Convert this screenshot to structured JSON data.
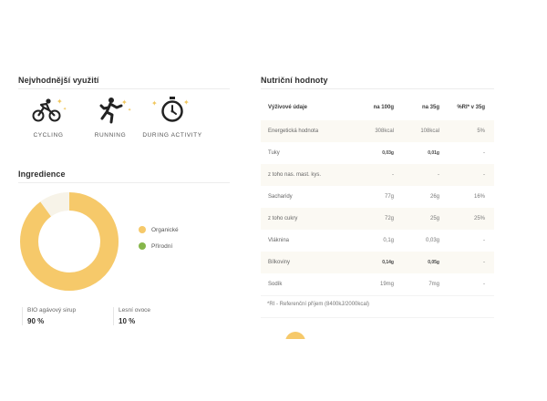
{
  "usage": {
    "title": "Nejvhodnější využití",
    "items": [
      {
        "icon": "cycling-icon",
        "label": "CYCLING"
      },
      {
        "icon": "running-icon",
        "label": "RUNNING"
      },
      {
        "icon": "stopwatch-icon",
        "label": "DURING ACTIVITY"
      }
    ]
  },
  "ingredients": {
    "title": "Ingredience",
    "legend": [
      {
        "label": "Organické",
        "color": "#f6c96a"
      },
      {
        "label": "Přírodní",
        "color": "#86b64a"
      }
    ],
    "items": [
      {
        "name": "BIO agávový sirup",
        "value": "90 %",
        "percent": 90
      },
      {
        "name": "Lesní ovoce",
        "value": "10 %",
        "percent": 10
      }
    ]
  },
  "nutrition": {
    "title": "Nutriční hodnoty",
    "headers": [
      "Výživové údaje",
      "na 100g",
      "na 35g",
      "%RI* v 35g"
    ],
    "rows": [
      [
        "Energetická hodnota",
        "308kcal",
        "108kcal",
        "5%"
      ],
      [
        "Tuky",
        "0,03g",
        "0,01g",
        "-"
      ],
      [
        "z toho nas. mast. kys.",
        "-",
        "-",
        "-"
      ],
      [
        "Sacharidy",
        "77g",
        "26g",
        "16%"
      ],
      [
        "z toho cukry",
        "72g",
        "25g",
        "25%"
      ],
      [
        "Vláknina",
        "0,1g",
        "0,03g",
        "-"
      ],
      [
        "Bílkoviny",
        "0,14g",
        "0,05g",
        "-"
      ],
      [
        "Sodík",
        "19mg",
        "7mg",
        "-"
      ]
    ],
    "footnote": "*RI - Referenční příjem (8400kJ/2000kcal)"
  },
  "colors": {
    "accent": "#f6c96a",
    "green": "#86b64a",
    "sparkle": "#f1c75e"
  }
}
